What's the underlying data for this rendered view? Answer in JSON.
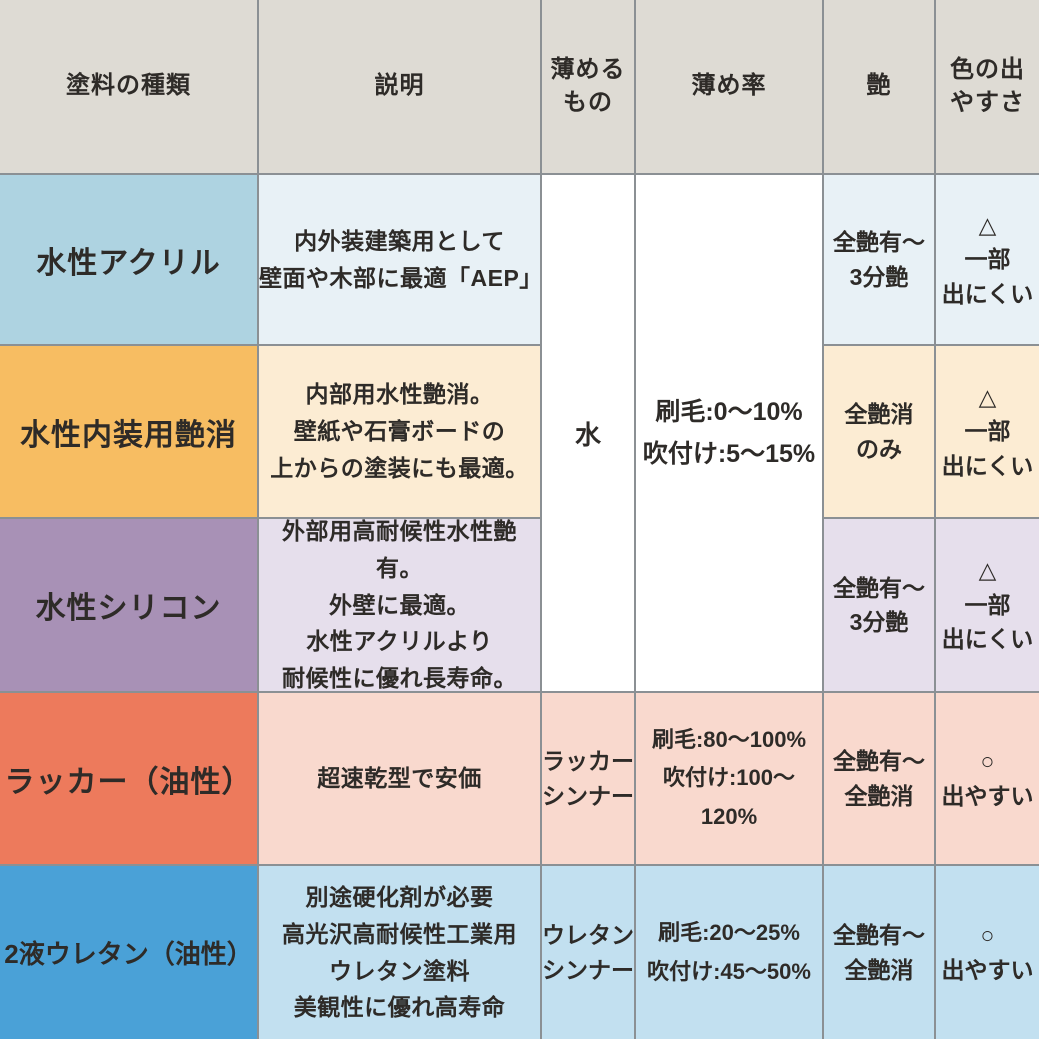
{
  "colors": {
    "border": "#8b9094",
    "header_bg": "#dedbd4",
    "text": "#2e2b28",
    "white_cell": "#ffffff"
  },
  "table": {
    "headers": [
      "塗料の種類",
      "説明",
      "薄める\nもの",
      "薄め率",
      "艶",
      "色の出\nやすさ"
    ],
    "merged": {
      "thinner": "水",
      "ratio": "刷毛:0〜10%\n吹付け:5〜15%"
    },
    "rows": [
      {
        "name": "水性アクリル",
        "description": "内外装建築用として\n壁面や木部に最適「AEP」",
        "thinner": "",
        "ratio": "",
        "gloss": "全艶有〜\n3分艶",
        "color_ease": "△\n一部\n出にくい",
        "name_bg": "#aed3e1",
        "cell_bg": "#e8f1f6"
      },
      {
        "name": "水性内装用艶消",
        "description": "内部用水性艶消。\n壁紙や石膏ボードの\n上からの塗装にも最適。",
        "thinner": "",
        "ratio": "",
        "gloss": "全艶消\nのみ",
        "color_ease": "△\n一部\n出にくい",
        "name_bg": "#f7bd62",
        "cell_bg": "#fcecd3"
      },
      {
        "name": "水性シリコン",
        "description": "外部用高耐候性水性艶有。\n外壁に最適。\n水性アクリルより\n耐候性に優れ長寿命。",
        "thinner": "",
        "ratio": "",
        "gloss": "全艶有〜\n3分艶",
        "color_ease": "△\n一部\n出にくい",
        "name_bg": "#a891b6",
        "cell_bg": "#e6dfec"
      },
      {
        "name": "ラッカー（油性）",
        "description": "超速乾型で安価",
        "thinner": "ラッカー\nシンナー",
        "ratio": "刷毛:80〜100%\n吹付け:100〜120%",
        "gloss": "全艶有〜\n全艶消",
        "color_ease": "○\n出やすい",
        "name_bg": "#ed7a5c",
        "cell_bg": "#f9d9ce"
      },
      {
        "name": "2液ウレタン（油性）",
        "description": "別途硬化剤が必要\n高光沢高耐候性工業用\nウレタン塗料\n美観性に優れ高寿命",
        "thinner": "ウレタン\nシンナー",
        "ratio": "刷毛:20〜25%\n吹付け:45〜50%",
        "gloss": "全艶有〜\n全艶消",
        "color_ease": "○\n出やすい",
        "name_bg": "#4aa1d7",
        "cell_bg": "#c2e0f0"
      }
    ]
  }
}
